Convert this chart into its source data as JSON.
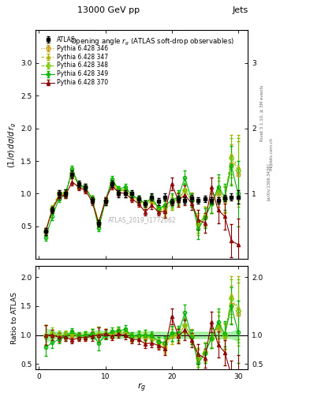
{
  "title_top": "13000 GeV pp",
  "title_right": "Jets",
  "plot_title": "Opening angle $r_g$ (ATLAS soft-drop observables)",
  "xlabel": "$r_g$",
  "ylabel_main": "$(1/\\sigma)\\, d\\sigma/d\\, r_g$",
  "ylabel_ratio": "Ratio to ATLAS",
  "watermark": "ATLAS_2019_I1772062",
  "rivet_text": "Rivet 3.1.10, ≥ 3M events",
  "arxiv_text": "[arXiv:1306.3436]",
  "mcplots_text": "mcplots.cern.ch",
  "xlim": [
    -0.5,
    31.5
  ],
  "ylim_main": [
    0,
    3.5
  ],
  "ylim_ratio": [
    0.4,
    2.2
  ],
  "yticks_main": [
    0.5,
    1.0,
    1.5,
    2.0,
    2.5,
    3.0
  ],
  "yticks_main_r": [
    1,
    2,
    3
  ],
  "yticks_ratio": [
    0.5,
    1.0,
    1.5,
    2.0
  ],
  "yticks_ratio_r": [
    0.5,
    1,
    2
  ],
  "x_ticks": [
    0,
    10,
    20,
    30
  ],
  "atlas_x": [
    1,
    2,
    3,
    4,
    5,
    6,
    7,
    8,
    9,
    10,
    11,
    12,
    13,
    14,
    15,
    16,
    17,
    18,
    19,
    20,
    21,
    22,
    23,
    24,
    25,
    26,
    27,
    28,
    29,
    30
  ],
  "atlas_y": [
    0.42,
    0.75,
    1.0,
    1.01,
    1.3,
    1.15,
    1.1,
    0.9,
    0.55,
    0.88,
    1.15,
    1.0,
    1.0,
    1.0,
    0.92,
    0.85,
    0.95,
    0.88,
    0.95,
    0.87,
    0.92,
    0.9,
    0.93,
    0.9,
    0.92,
    0.9,
    0.9,
    0.93,
    0.95,
    0.95
  ],
  "atlas_yerr": [
    0.05,
    0.05,
    0.05,
    0.05,
    0.05,
    0.05,
    0.05,
    0.05,
    0.05,
    0.05,
    0.05,
    0.05,
    0.05,
    0.05,
    0.05,
    0.05,
    0.05,
    0.05,
    0.05,
    0.05,
    0.05,
    0.05,
    0.05,
    0.05,
    0.05,
    0.05,
    0.05,
    0.05,
    0.05,
    0.1
  ],
  "p346_y": [
    0.42,
    0.75,
    0.98,
    1.0,
    1.3,
    1.12,
    1.08,
    0.92,
    0.55,
    0.9,
    1.15,
    1.05,
    1.05,
    0.95,
    0.9,
    0.82,
    0.9,
    0.75,
    0.75,
    0.85,
    0.9,
    1.05,
    0.92,
    0.52,
    0.65,
    0.85,
    1.0,
    0.92,
    1.45,
    1.3
  ],
  "p346_yerr": [
    0.05,
    0.05,
    0.05,
    0.05,
    0.05,
    0.05,
    0.05,
    0.05,
    0.05,
    0.05,
    0.05,
    0.05,
    0.05,
    0.05,
    0.05,
    0.05,
    0.05,
    0.05,
    0.1,
    0.1,
    0.1,
    0.1,
    0.1,
    0.15,
    0.15,
    0.15,
    0.2,
    0.2,
    0.3,
    0.5
  ],
  "p347_y": [
    0.42,
    0.75,
    0.98,
    1.0,
    1.35,
    1.12,
    1.1,
    0.92,
    0.56,
    0.9,
    1.15,
    1.05,
    1.05,
    0.95,
    0.9,
    0.82,
    0.9,
    0.75,
    0.78,
    0.85,
    0.92,
    1.05,
    0.9,
    0.55,
    0.65,
    0.85,
    1.05,
    0.9,
    1.6,
    1.4
  ],
  "p347_yerr": [
    0.05,
    0.05,
    0.05,
    0.05,
    0.05,
    0.05,
    0.05,
    0.05,
    0.05,
    0.05,
    0.05,
    0.05,
    0.05,
    0.05,
    0.05,
    0.05,
    0.05,
    0.05,
    0.1,
    0.1,
    0.1,
    0.1,
    0.1,
    0.15,
    0.15,
    0.15,
    0.2,
    0.2,
    0.3,
    0.5
  ],
  "p348_y": [
    0.42,
    0.78,
    1.0,
    1.02,
    1.32,
    1.13,
    1.1,
    0.92,
    0.56,
    0.9,
    1.18,
    1.07,
    1.05,
    0.96,
    0.9,
    0.85,
    0.92,
    0.78,
    0.8,
    0.88,
    0.93,
    1.05,
    0.9,
    0.55,
    0.65,
    0.85,
    1.05,
    0.92,
    1.55,
    1.35
  ],
  "p348_yerr": [
    0.05,
    0.05,
    0.05,
    0.05,
    0.05,
    0.05,
    0.05,
    0.05,
    0.05,
    0.05,
    0.05,
    0.05,
    0.05,
    0.05,
    0.05,
    0.05,
    0.05,
    0.05,
    0.1,
    0.1,
    0.1,
    0.1,
    0.1,
    0.15,
    0.15,
    0.15,
    0.2,
    0.2,
    0.3,
    0.5
  ],
  "p349_y": [
    0.33,
    0.65,
    0.92,
    0.98,
    1.38,
    1.13,
    1.1,
    0.92,
    0.47,
    0.88,
    1.22,
    1.07,
    1.1,
    0.98,
    0.92,
    0.85,
    0.94,
    0.78,
    0.82,
    0.9,
    0.95,
    1.25,
    0.9,
    0.46,
    0.63,
    0.85,
    1.1,
    0.95,
    1.43,
    1.0
  ],
  "p349_yerr": [
    0.05,
    0.05,
    0.05,
    0.05,
    0.05,
    0.05,
    0.05,
    0.05,
    0.05,
    0.05,
    0.05,
    0.05,
    0.05,
    0.05,
    0.05,
    0.05,
    0.05,
    0.05,
    0.1,
    0.1,
    0.1,
    0.1,
    0.1,
    0.15,
    0.15,
    0.15,
    0.2,
    0.2,
    0.3,
    0.5
  ],
  "p370_y": [
    0.42,
    0.75,
    0.96,
    0.98,
    1.18,
    1.1,
    1.05,
    0.88,
    0.55,
    0.9,
    1.12,
    1.02,
    1.0,
    0.92,
    0.85,
    0.72,
    0.82,
    0.72,
    0.73,
    1.15,
    0.9,
    0.98,
    0.85,
    0.6,
    0.55,
    1.1,
    0.75,
    0.65,
    0.28,
    0.22
  ],
  "p370_yerr": [
    0.05,
    0.05,
    0.05,
    0.05,
    0.05,
    0.05,
    0.05,
    0.05,
    0.05,
    0.05,
    0.05,
    0.05,
    0.05,
    0.05,
    0.05,
    0.05,
    0.05,
    0.05,
    0.1,
    0.1,
    0.1,
    0.15,
    0.1,
    0.15,
    0.15,
    0.15,
    0.2,
    0.2,
    0.25,
    0.4
  ],
  "color_atlas": "#000000",
  "color_p346": "#c8960a",
  "color_p347": "#b0b000",
  "color_p348": "#78c800",
  "color_p349": "#00b400",
  "color_p370": "#8b0000",
  "bg_band_color": "#90ee90",
  "fig_bg": "#ffffff"
}
